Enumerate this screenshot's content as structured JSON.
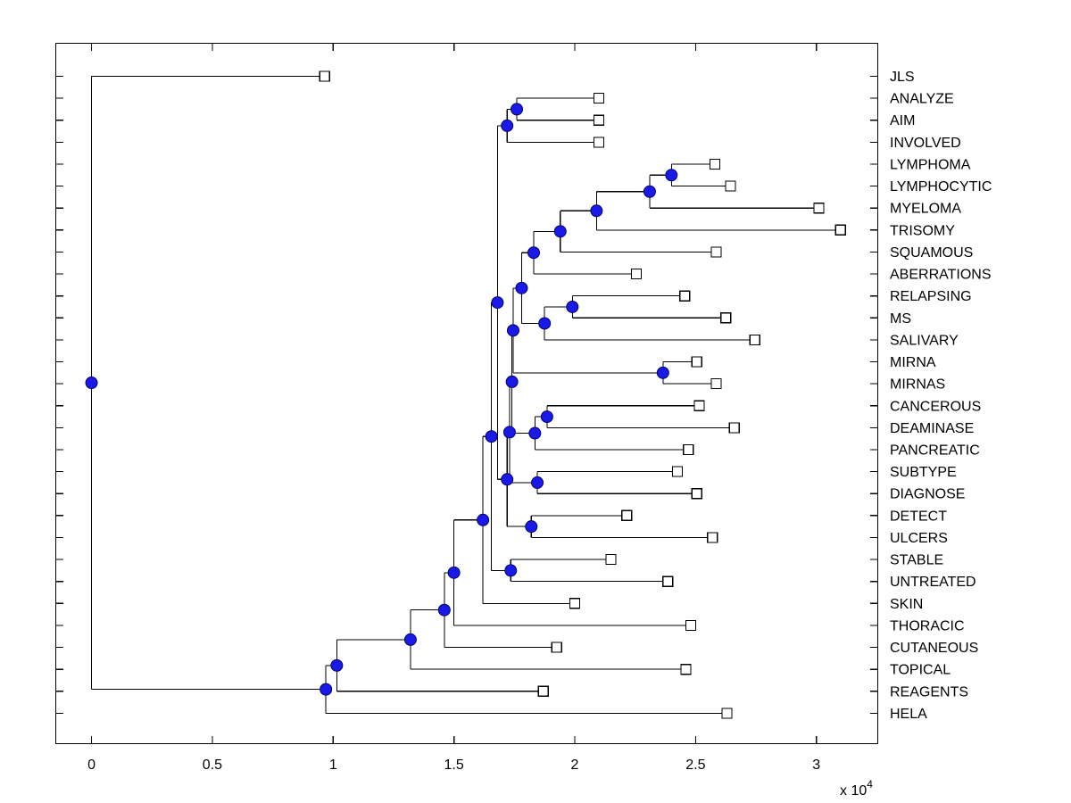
{
  "chart_data": {
    "type": "dendrogram",
    "title": "",
    "orientation": "left-to-right",
    "x_axis": {
      "tick_values": [
        0,
        5000,
        10000,
        15000,
        20000,
        25000,
        30000
      ],
      "tick_labels": [
        "0",
        "0.5",
        "1",
        "1.5",
        "2",
        "2.5",
        "3"
      ],
      "multiplier_label": "x 10",
      "multiplier_exponent": "4",
      "xlim": [
        -1480,
        32540
      ]
    },
    "leaves": [
      {
        "id": "L1",
        "label": "JLS",
        "distance": 9650
      },
      {
        "id": "L2",
        "label": "ANALYZE",
        "distance": 21000
      },
      {
        "id": "L3",
        "label": "AIM",
        "distance": 21000
      },
      {
        "id": "L4",
        "label": "INVOLVED",
        "distance": 21000
      },
      {
        "id": "L5",
        "label": "LYMPHOMA",
        "distance": 25800
      },
      {
        "id": "L6",
        "label": "LYMPHOCYTIC",
        "distance": 26450
      },
      {
        "id": "L7",
        "label": "MYELOMA",
        "distance": 30100
      },
      {
        "id": "L8",
        "label": "TRISOMY",
        "distance": 31000
      },
      {
        "id": "L9",
        "label": "SQUAMOUS",
        "distance": 25850
      },
      {
        "id": "L10",
        "label": "ABERRATIONS",
        "distance": 22550
      },
      {
        "id": "L11",
        "label": "RELAPSING",
        "distance": 24550
      },
      {
        "id": "L12",
        "label": "MS",
        "distance": 26250
      },
      {
        "id": "L13",
        "label": "SALIVARY",
        "distance": 27450
      },
      {
        "id": "L14",
        "label": "MIRNA",
        "distance": 25050
      },
      {
        "id": "L15",
        "label": "MIRNAS",
        "distance": 25850
      },
      {
        "id": "L16",
        "label": "CANCEROUS",
        "distance": 25150
      },
      {
        "id": "L17",
        "label": "DEAMINASE",
        "distance": 26600
      },
      {
        "id": "L18",
        "label": "PANCREATIC",
        "distance": 24700
      },
      {
        "id": "L19",
        "label": "SUBTYPE",
        "distance": 24250
      },
      {
        "id": "L20",
        "label": "DIAGNOSE",
        "distance": 25050
      },
      {
        "id": "L21",
        "label": "DETECT",
        "distance": 22150
      },
      {
        "id": "L22",
        "label": "ULCERS",
        "distance": 25700
      },
      {
        "id": "L23",
        "label": "STABLE",
        "distance": 21500
      },
      {
        "id": "L24",
        "label": "UNTREATED",
        "distance": 23850
      },
      {
        "id": "L25",
        "label": "SKIN",
        "distance": 20000
      },
      {
        "id": "L26",
        "label": "THORACIC",
        "distance": 24800
      },
      {
        "id": "L27",
        "label": "CUTANEOUS",
        "distance": 19250
      },
      {
        "id": "L28",
        "label": "TOPICAL",
        "distance": 24600
      },
      {
        "id": "L29",
        "label": "REAGENTS",
        "distance": 18700
      },
      {
        "id": "L30",
        "label": "HELA",
        "distance": 26300
      }
    ],
    "branches": [
      {
        "id": "N1",
        "distance": 17600,
        "children": [
          "L2",
          "L3"
        ]
      },
      {
        "id": "N2",
        "distance": 17200,
        "children": [
          "N1",
          "L4"
        ]
      },
      {
        "id": "N3",
        "distance": 24000,
        "children": [
          "L5",
          "L6"
        ]
      },
      {
        "id": "N4",
        "distance": 23100,
        "children": [
          "N3",
          "L7"
        ]
      },
      {
        "id": "N5",
        "distance": 20900,
        "children": [
          "N4",
          "L8"
        ]
      },
      {
        "id": "N6",
        "distance": 19400,
        "children": [
          "N5",
          "L9"
        ]
      },
      {
        "id": "N7",
        "distance": 18300,
        "children": [
          "N6",
          "L10"
        ]
      },
      {
        "id": "N8",
        "distance": 19900,
        "children": [
          "L11",
          "L12"
        ]
      },
      {
        "id": "N9",
        "distance": 18750,
        "children": [
          "N8",
          "L13"
        ]
      },
      {
        "id": "N10",
        "distance": 17800,
        "children": [
          "N7",
          "N9"
        ]
      },
      {
        "id": "N11",
        "distance": 23650,
        "children": [
          "L14",
          "L15"
        ]
      },
      {
        "id": "N12",
        "distance": 17450,
        "children": [
          "N10",
          "N11"
        ]
      },
      {
        "id": "N13",
        "distance": 18850,
        "children": [
          "L16",
          "L17"
        ]
      },
      {
        "id": "N14",
        "distance": 18350,
        "children": [
          "N13",
          "L18"
        ]
      },
      {
        "id": "N15",
        "distance": 17400,
        "children": [
          "N12",
          "N14"
        ]
      },
      {
        "id": "N16",
        "distance": 18450,
        "children": [
          "L19",
          "L20"
        ]
      },
      {
        "id": "N17",
        "distance": 17300,
        "children": [
          "N15",
          "N16"
        ]
      },
      {
        "id": "N18",
        "distance": 18200,
        "children": [
          "L21",
          "L22"
        ]
      },
      {
        "id": "N19",
        "distance": 17200,
        "children": [
          "N17",
          "N18"
        ]
      },
      {
        "id": "N20",
        "distance": 17350,
        "children": [
          "L23",
          "L24"
        ]
      },
      {
        "id": "N21",
        "distance": 16800,
        "children": [
          "N2",
          "N19"
        ]
      },
      {
        "id": "N22",
        "distance": 16550,
        "children": [
          "N21",
          "N20"
        ]
      },
      {
        "id": "N23",
        "distance": 16200,
        "children": [
          "N22",
          "L25"
        ]
      },
      {
        "id": "N24",
        "distance": 15000,
        "children": [
          "N23",
          "L26"
        ]
      },
      {
        "id": "N25",
        "distance": 14600,
        "children": [
          "N24",
          "L27"
        ]
      },
      {
        "id": "N26",
        "distance": 13200,
        "children": [
          "N25",
          "L28"
        ]
      },
      {
        "id": "N27",
        "distance": 10150,
        "children": [
          "N26",
          "L29"
        ]
      },
      {
        "id": "N28",
        "distance": 9700,
        "children": [
          "N27",
          "L30"
        ]
      },
      {
        "id": "N29",
        "distance": 0,
        "children": [
          "L1",
          "N28"
        ]
      }
    ],
    "style": {
      "line_color": "#000000",
      "leaf_marker": "open-square",
      "leaf_marker_fill": "#ffffff",
      "leaf_marker_border": "#000000",
      "branch_marker": "filled-circle",
      "branch_marker_fill": "#1a1ae8",
      "branch_marker_border": "#000066",
      "background": "#ffffff",
      "grid": "off",
      "legend": "none"
    }
  }
}
